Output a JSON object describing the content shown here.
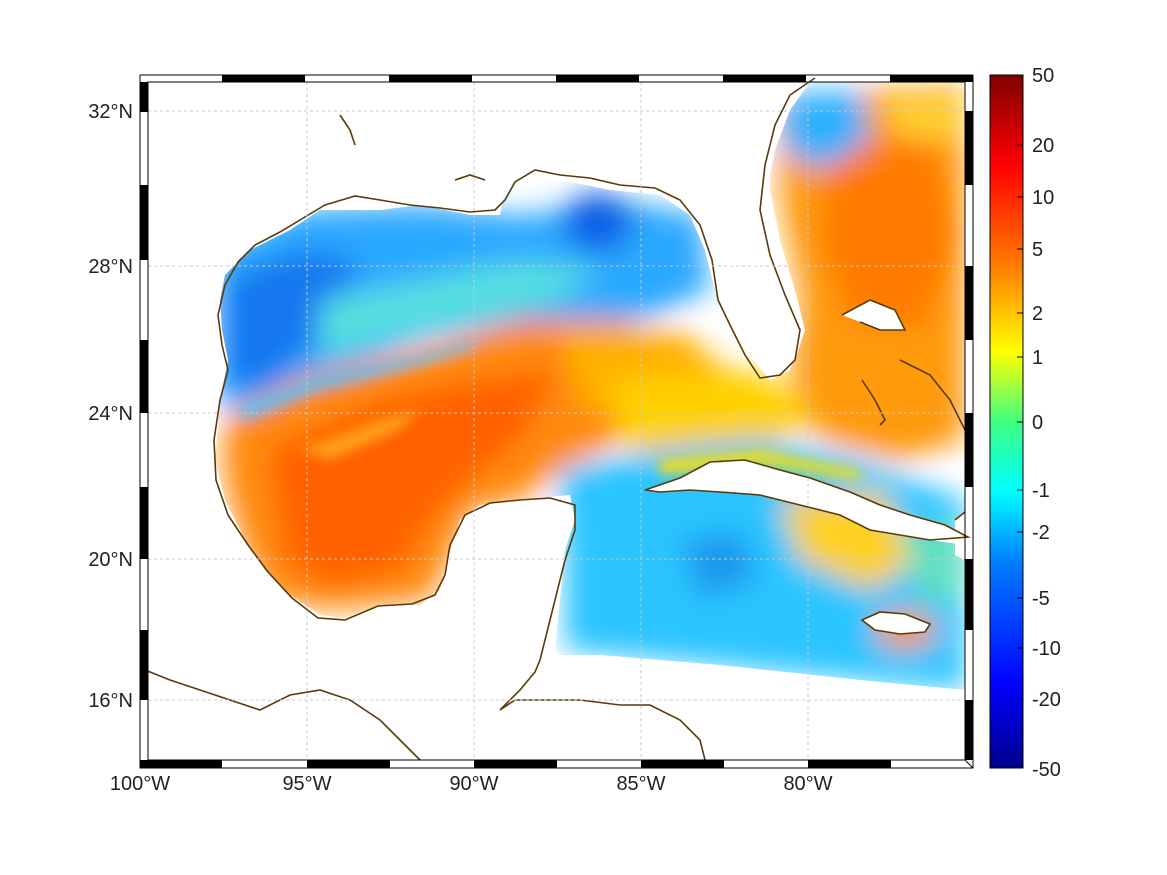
{
  "map": {
    "lon_labels": [
      "100°W",
      "95°W",
      "90°W",
      "85°W",
      "80°W"
    ],
    "lat_labels": [
      "32°N",
      "28°N",
      "24°N",
      "20°N",
      "16°N"
    ]
  },
  "colorbar": {
    "tick_labels": [
      "50",
      "20",
      "10",
      "5",
      "2",
      "1",
      "0",
      "-1",
      "-2",
      "-5",
      "-10",
      "-20",
      "-50"
    ]
  },
  "colors": {
    "coastline": "#5a3a0a",
    "land": "#ffffff",
    "grid": "#c8c8c8",
    "frame_dark": "#000000",
    "frame_light": "#ffffff"
  }
}
